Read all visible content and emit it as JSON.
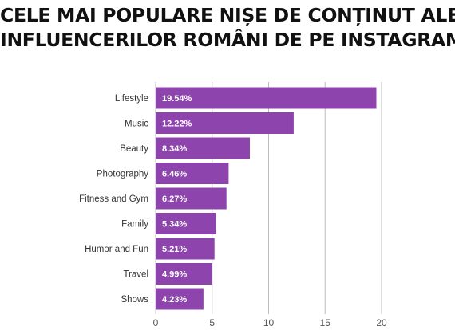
{
  "title_line1": "CELE MAI POPULARE NIȘE DE CONȚINUT ALE",
  "title_line2": "INFLUENCERILOR ROMÂNI DE PE INSTAGRAM",
  "chart_data": {
    "type": "bar",
    "orientation": "horizontal",
    "categories": [
      "Lifestyle",
      "Music",
      "Beauty",
      "Photography",
      "Fitness and Gym",
      "Family",
      "Humor and Fun",
      "Travel",
      "Shows"
    ],
    "values": [
      19.54,
      12.22,
      8.34,
      6.46,
      6.27,
      5.34,
      5.21,
      4.99,
      4.23
    ],
    "value_labels": [
      "19.54%",
      "12.22%",
      "8.34%",
      "6.46%",
      "6.27%",
      "5.34%",
      "5.21%",
      "4.99%",
      "4.23%"
    ],
    "xticks": [
      "0",
      "5",
      "10",
      "15",
      "20"
    ],
    "xlim": [
      0,
      20
    ],
    "grid": "vertical",
    "bar_color": "#8e44ad"
  }
}
